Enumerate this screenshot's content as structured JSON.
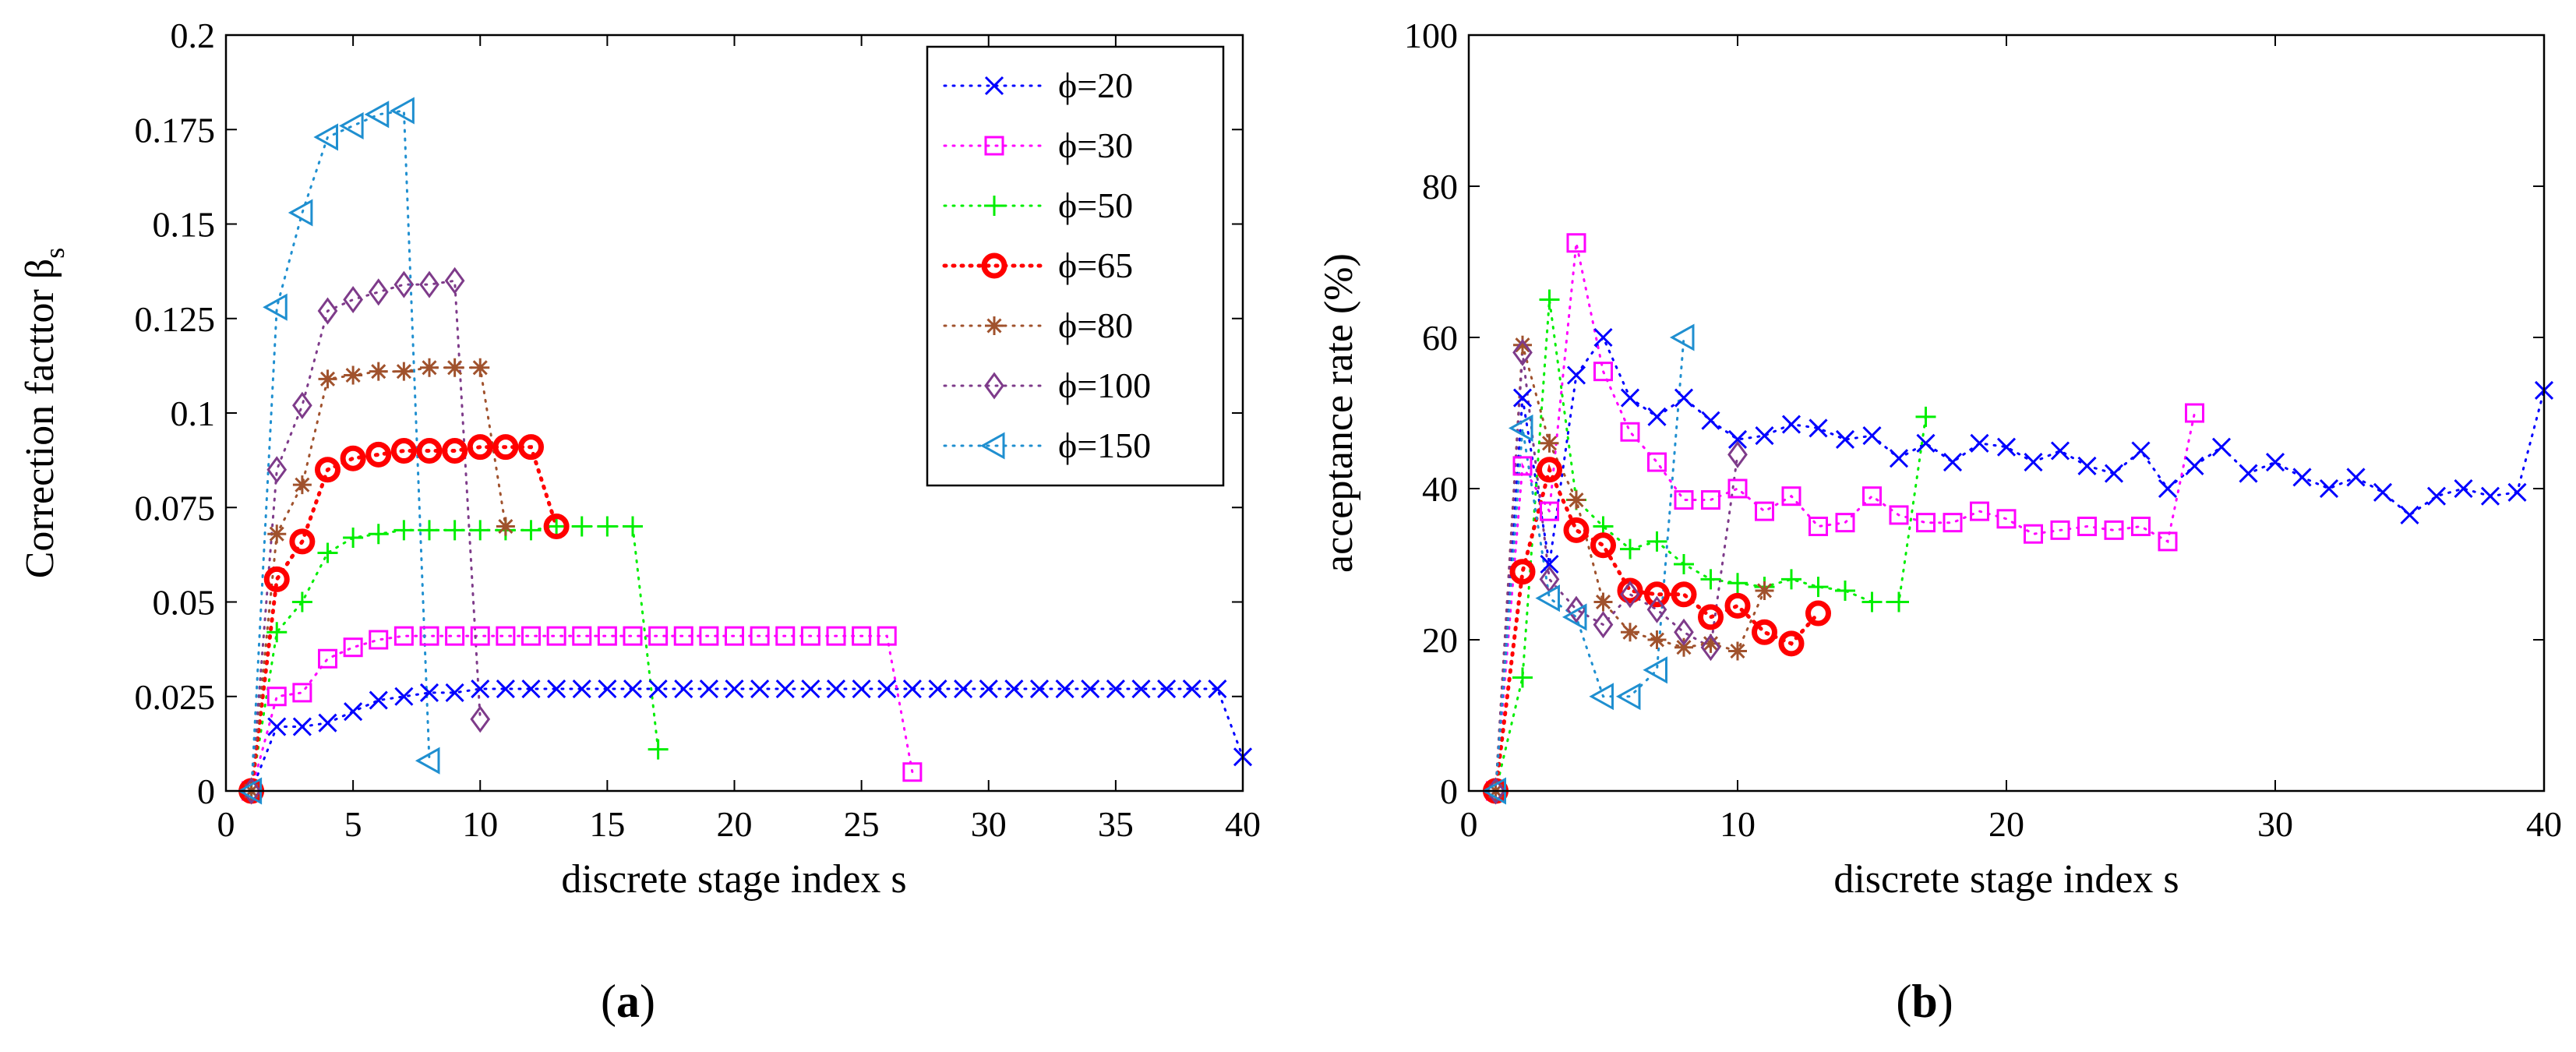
{
  "chart_data": [
    {
      "type": "line",
      "panel_label": "(a)",
      "panel_letter": "a",
      "xlabel": "discrete stage index s",
      "ylabel": "Correction facttor β",
      "ylabel_main": "Correction facttor β",
      "ylabel_sub": "s",
      "xlim": [
        0,
        40
      ],
      "ylim": [
        0,
        0.2
      ],
      "xticks": [
        0,
        5,
        10,
        15,
        20,
        25,
        30,
        35,
        40
      ],
      "yticks": [
        0,
        0.025,
        0.05,
        0.075,
        0.1,
        0.125,
        0.15,
        0.175,
        0.2
      ],
      "ytick_labels": [
        "0",
        "0.025",
        "0.05",
        "0.075",
        "0.1",
        "0.125",
        "0.15",
        "0.175",
        "0.2"
      ],
      "legend_position": "top-right",
      "series": [
        {
          "name": "ϕ=20",
          "color": "#0000ff",
          "marker": "x",
          "x": [
            1,
            2,
            3,
            4,
            5,
            6,
            7,
            8,
            9,
            10,
            11,
            12,
            13,
            14,
            15,
            16,
            17,
            18,
            19,
            20,
            21,
            22,
            23,
            24,
            25,
            26,
            27,
            28,
            29,
            30,
            31,
            32,
            33,
            34,
            35,
            36,
            37,
            38,
            39,
            40
          ],
          "y": [
            0,
            0.017,
            0.017,
            0.018,
            0.021,
            0.024,
            0.025,
            0.026,
            0.026,
            0.027,
            0.027,
            0.027,
            0.027,
            0.027,
            0.027,
            0.027,
            0.027,
            0.027,
            0.027,
            0.027,
            0.027,
            0.027,
            0.027,
            0.027,
            0.027,
            0.027,
            0.027,
            0.027,
            0.027,
            0.027,
            0.027,
            0.027,
            0.027,
            0.027,
            0.027,
            0.027,
            0.027,
            0.027,
            0.027,
            0.009
          ]
        },
        {
          "name": "ϕ=30",
          "color": "#ff00ff",
          "marker": "square",
          "x": [
            1,
            2,
            3,
            4,
            5,
            6,
            7,
            8,
            9,
            10,
            11,
            12,
            13,
            14,
            15,
            16,
            17,
            18,
            19,
            20,
            21,
            22,
            23,
            24,
            25,
            26,
            27
          ],
          "y": [
            0,
            0.025,
            0.026,
            0.035,
            0.038,
            0.04,
            0.041,
            0.041,
            0.041,
            0.041,
            0.041,
            0.041,
            0.041,
            0.041,
            0.041,
            0.041,
            0.041,
            0.041,
            0.041,
            0.041,
            0.041,
            0.041,
            0.041,
            0.041,
            0.041,
            0.041,
            0.005
          ]
        },
        {
          "name": "ϕ=50",
          "color": "#00ee00",
          "marker": "plus",
          "x": [
            1,
            2,
            3,
            4,
            5,
            6,
            7,
            8,
            9,
            10,
            11,
            12,
            13,
            14,
            15,
            16,
            17
          ],
          "y": [
            0,
            0.042,
            0.05,
            0.063,
            0.067,
            0.068,
            0.069,
            0.069,
            0.069,
            0.069,
            0.069,
            0.069,
            0.07,
            0.07,
            0.07,
            0.07,
            0.011
          ]
        },
        {
          "name": "ϕ=65",
          "color": "#ff0000",
          "marker": "circle",
          "x": [
            1,
            2,
            3,
            4,
            5,
            6,
            7,
            8,
            9,
            10,
            11,
            12,
            13
          ],
          "y": [
            0,
            0.056,
            0.066,
            0.085,
            0.088,
            0.089,
            0.09,
            0.09,
            0.09,
            0.091,
            0.091,
            0.091,
            0.07
          ]
        },
        {
          "name": "ϕ=80",
          "color": "#a0522d",
          "marker": "star",
          "x": [
            1,
            2,
            3,
            4,
            5,
            6,
            7,
            8,
            9,
            10,
            11
          ],
          "y": [
            0,
            0.068,
            0.081,
            0.109,
            0.11,
            0.111,
            0.111,
            0.112,
            0.112,
            0.112,
            0.07
          ]
        },
        {
          "name": "ϕ=100",
          "color": "#7e3b8a",
          "marker": "diamond",
          "x": [
            1,
            2,
            3,
            4,
            5,
            6,
            7,
            8,
            9,
            10
          ],
          "y": [
            0,
            0.085,
            0.102,
            0.127,
            0.13,
            0.132,
            0.134,
            0.134,
            0.135,
            0.019
          ]
        },
        {
          "name": "ϕ=150",
          "color": "#1f8fd0",
          "marker": "triangle-left",
          "x": [
            1,
            2,
            3,
            4,
            5,
            6,
            7,
            8
          ],
          "y": [
            0,
            0.128,
            0.153,
            0.173,
            0.176,
            0.179,
            0.18,
            0.008
          ]
        }
      ]
    },
    {
      "type": "line",
      "panel_label": "(b)",
      "panel_letter": "b",
      "xlabel": "discrete stage index s",
      "ylabel": "acceptance rate (%)",
      "xlim": [
        0,
        40
      ],
      "ylim": [
        0,
        100
      ],
      "xticks": [
        0,
        10,
        20,
        30,
        40
      ],
      "yticks": [
        0,
        20,
        40,
        60,
        80,
        100
      ],
      "ytick_labels": [
        "0",
        "20",
        "40",
        "60",
        "80",
        "100"
      ],
      "series": [
        {
          "name": "ϕ=20",
          "color": "#0000ff",
          "marker": "x",
          "x": [
            1,
            2,
            3,
            4,
            5,
            6,
            7,
            8,
            9,
            10,
            11,
            12,
            13,
            14,
            15,
            16,
            17,
            18,
            19,
            20,
            21,
            22,
            23,
            24,
            25,
            26,
            27,
            28,
            29,
            30,
            31,
            32,
            33,
            34,
            35,
            36,
            37,
            38,
            39,
            40
          ],
          "y": [
            0,
            52,
            30,
            55,
            60,
            52,
            49.5,
            52,
            49,
            46.5,
            47,
            48.5,
            48,
            46.5,
            47,
            44,
            46,
            43.5,
            46,
            45.5,
            43.5,
            45,
            43,
            42,
            45,
            40,
            43,
            45.5,
            42,
            43.5,
            41.5,
            40,
            41.5,
            39.5,
            36.5,
            39,
            40,
            39,
            39.5,
            53
          ]
        },
        {
          "name": "ϕ=30",
          "color": "#ff00ff",
          "marker": "square",
          "x": [
            1,
            2,
            3,
            4,
            5,
            6,
            7,
            8,
            9,
            10,
            11,
            12,
            13,
            14,
            15,
            16,
            17,
            18,
            19,
            20,
            21,
            22,
            23,
            24,
            25,
            26,
            27
          ],
          "y": [
            0,
            43,
            37,
            72.5,
            55.5,
            47.5,
            43.5,
            38.5,
            38.5,
            40,
            37,
            39,
            35,
            35.5,
            39,
            36.5,
            35.5,
            35.5,
            37,
            36,
            34,
            34.5,
            35,
            34.5,
            35,
            33,
            50
          ]
        },
        {
          "name": "ϕ=50",
          "color": "#00ee00",
          "marker": "plus",
          "x": [
            1,
            2,
            3,
            4,
            5,
            6,
            7,
            8,
            9,
            10,
            11,
            12,
            13,
            14,
            15,
            16,
            17
          ],
          "y": [
            0,
            15,
            65,
            38.5,
            35,
            32,
            33,
            30,
            28,
            27.5,
            27,
            28,
            27,
            26.5,
            25,
            25,
            49.5
          ]
        },
        {
          "name": "ϕ=65",
          "color": "#ff0000",
          "marker": "circle",
          "x": [
            1,
            2,
            3,
            4,
            5,
            6,
            7,
            8,
            9,
            10,
            11,
            12,
            13
          ],
          "y": [
            0,
            29,
            42.5,
            34.5,
            32.5,
            26.5,
            26,
            26,
            23,
            24.5,
            21,
            19.5,
            23.5
          ]
        },
        {
          "name": "ϕ=80",
          "color": "#a0522d",
          "marker": "star",
          "x": [
            1,
            2,
            3,
            4,
            5,
            6,
            7,
            8,
            9,
            10,
            11
          ],
          "y": [
            0,
            59,
            46,
            38.5,
            25,
            21,
            20,
            19,
            19.5,
            18.5,
            26.5
          ]
        },
        {
          "name": "ϕ=100",
          "color": "#7e3b8a",
          "marker": "diamond",
          "x": [
            1,
            2,
            3,
            4,
            5,
            6,
            7,
            8,
            9,
            10
          ],
          "y": [
            0,
            58,
            28,
            24,
            22,
            26,
            24,
            21,
            19,
            44.5
          ]
        },
        {
          "name": "ϕ=150",
          "color": "#1f8fd0",
          "marker": "triangle-left",
          "x": [
            1,
            2,
            3,
            4,
            5,
            6,
            7,
            8
          ],
          "y": [
            0,
            48,
            25.5,
            23,
            12.5,
            12.5,
            16,
            60
          ]
        }
      ]
    }
  ]
}
